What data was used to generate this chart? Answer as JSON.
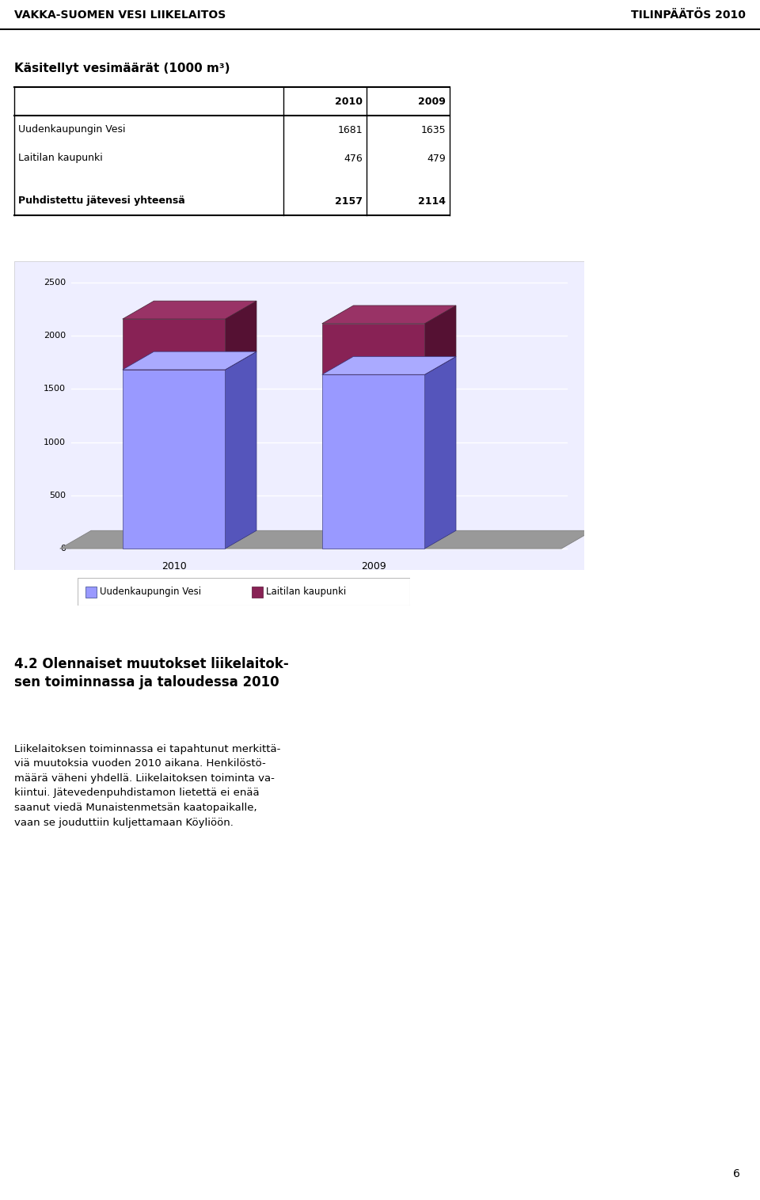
{
  "header_left": "VAKKA-SUOMEN VESI LIIKELAITOS",
  "header_right": "TILINPÄÄTÖS 2010",
  "section_title": "Käsitellyt vesimäärät (1000 m³)",
  "table_headers": [
    "",
    "2010",
    "2009"
  ],
  "table_rows": [
    [
      "Uudenkaupungin Vesi",
      "1681",
      "1635"
    ],
    [
      "Laitilan kaupunki",
      "476",
      "479"
    ],
    [
      "",
      "",
      ""
    ],
    [
      "Puhdistettu jätevesi yhteensä",
      "2157",
      "2114"
    ]
  ],
  "bar_categories": [
    "2010",
    "2009"
  ],
  "bar_vesi": [
    1681,
    1635
  ],
  "bar_laitila": [
    476,
    479
  ],
  "yticks": [
    0,
    500,
    1000,
    1500,
    2000,
    2500
  ],
  "color_vesi": "#9999FF",
  "color_vesi_side": "#5555BB",
  "color_vesi_top": "#AAAAFF",
  "color_laitila": "#882255",
  "color_laitila_side": "#551133",
  "color_laitila_top": "#993366",
  "color_floor": "#999999",
  "color_floor_side": "#777777",
  "legend_vesi": "Uudenkaupungin Vesi",
  "legend_laitila": "Laitilan kaupunki",
  "section2_title": "4.2 Olennaiset muutokset liikelaitok-\nsen toiminnassa ja taloudessa 2010",
  "section2_body": "Liikelaitoksen toiminnassa ei tapahtunut merkittä-\nviä muutoksia vuoden 2010 aikana. Henkilöstö-\nmäärä väheni yhdellä. Liikelaitoksen toiminta va-\nkiintui. Jätevedenpuhdistamon lietettä ei enää\nsaanut viedä Munaistenmetsän kaatopaikalle,\nvaan se jouduttiin kuljettamaan Köyliöön.",
  "page_number": "6",
  "bg_color": "#FFFFFF",
  "chart_bg": "#EEEEFF"
}
